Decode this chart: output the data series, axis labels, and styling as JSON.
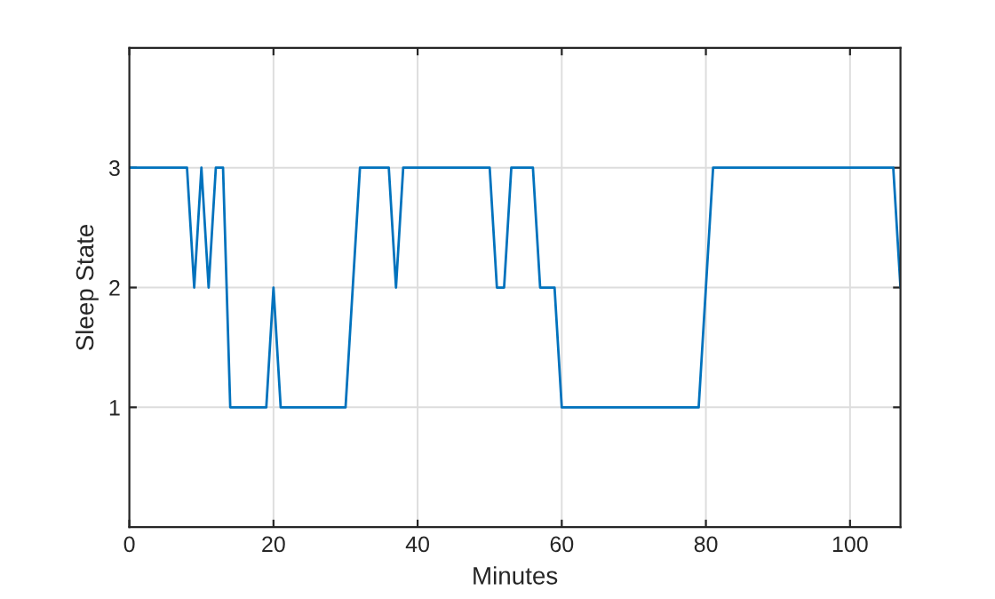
{
  "chart_data": {
    "type": "line",
    "xlabel": "Minutes",
    "ylabel": "Sleep State",
    "x": [
      0,
      8,
      9,
      10,
      11,
      12,
      13,
      14,
      19,
      20,
      21,
      30,
      31,
      32,
      36,
      37,
      38,
      50,
      51,
      52,
      53,
      56,
      57,
      59,
      60,
      79,
      80,
      81,
      106,
      107
    ],
    "series": [
      {
        "color": "#0072bd",
        "values": [
          3,
          3,
          2,
          3,
          2,
          3,
          3,
          1,
          1,
          2,
          1,
          1,
          2,
          3,
          3,
          2,
          3,
          3,
          2,
          2,
          3,
          3,
          2,
          2,
          1,
          1,
          2,
          3,
          3,
          2
        ]
      }
    ],
    "xlim": [
      0,
      107
    ],
    "xticks": [
      0,
      20,
      40,
      60,
      80,
      100
    ],
    "ylim": [
      0,
      4
    ],
    "yticks": [
      1,
      2,
      3
    ],
    "grid": true,
    "marker": "none",
    "line_style": "solid"
  }
}
